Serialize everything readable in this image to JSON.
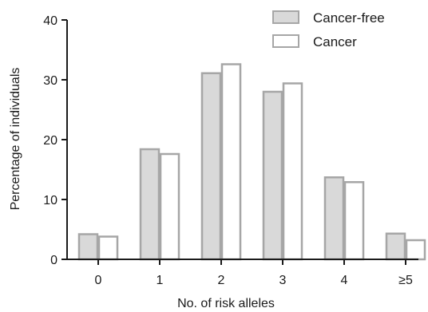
{
  "chart_data": {
    "type": "bar",
    "xlabel": "No. of risk alleles",
    "ylabel": "Percentage of individuals",
    "categories": [
      "0",
      "1",
      "2",
      "3",
      "4",
      "≥5"
    ],
    "ylim": [
      0,
      40
    ],
    "yticks": [
      0,
      10,
      20,
      30,
      40
    ],
    "legend_position": "top-right",
    "series": [
      {
        "name": "Cancer-free",
        "values": [
          4.2,
          18.4,
          31.1,
          28.0,
          13.7,
          4.3
        ],
        "color": "#d9d9d9",
        "stroke": "#a6a6a6"
      },
      {
        "name": "Cancer",
        "values": [
          3.8,
          17.6,
          32.6,
          29.4,
          12.9,
          3.2
        ],
        "color": "#ffffff",
        "stroke": "#a6a6a6"
      }
    ]
  }
}
